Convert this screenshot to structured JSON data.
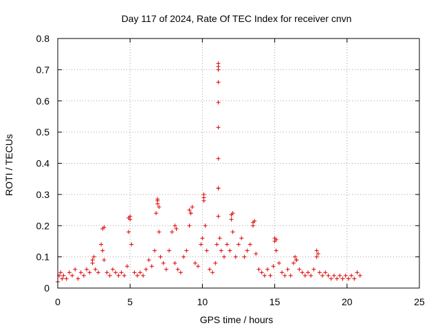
{
  "chart_data": {
    "type": "scatter",
    "title": "Day 117 of 2024, Rate Of TEC Index for receiver cnvn",
    "xlabel": "GPS time / hours",
    "ylabel": "ROTI / TECUs",
    "xlim": [
      0,
      25
    ],
    "ylim": [
      0,
      0.8
    ],
    "xticks": [
      "0",
      "5",
      "10",
      "15",
      "20",
      "25"
    ],
    "yticks": [
      "0",
      "0.1",
      "0.2",
      "0.3",
      "0.4",
      "0.5",
      "0.6",
      "0.7",
      "0.8"
    ],
    "grid": true,
    "marker": "+",
    "marker_color": "#e00000",
    "series": [
      {
        "name": "ROTI",
        "x": [
          0.0,
          0.1,
          0.2,
          0.3,
          0.4,
          0.6,
          0.8,
          1.0,
          1.2,
          1.4,
          1.6,
          1.8,
          2.0,
          2.2,
          2.4,
          2.6,
          2.8,
          3.0,
          3.1,
          3.2,
          3.4,
          3.6,
          3.8,
          4.0,
          4.2,
          4.4,
          4.6,
          4.8,
          4.9,
          5.0,
          5.1,
          5.3,
          5.5,
          5.7,
          5.9,
          6.1,
          6.3,
          6.5,
          6.7,
          6.8,
          6.9,
          7.0,
          7.1,
          7.3,
          7.5,
          7.7,
          7.9,
          8.1,
          8.3,
          8.5,
          8.7,
          8.9,
          9.1,
          9.2,
          9.3,
          9.5,
          9.7,
          9.9,
          10.0,
          10.1,
          10.2,
          10.3,
          10.5,
          10.7,
          10.9,
          11.0,
          11.1,
          11.2,
          11.3,
          11.5,
          11.7,
          11.9,
          12.0,
          12.1,
          12.3,
          12.5,
          12.7,
          12.9,
          13.1,
          13.3,
          13.5,
          13.7,
          13.9,
          14.1,
          14.3,
          14.5,
          14.7,
          14.9,
          15.0,
          15.1,
          15.3,
          15.5,
          15.7,
          15.9,
          16.1,
          16.3,
          16.5,
          16.7,
          16.9,
          17.1,
          17.3,
          17.5,
          17.7,
          17.9,
          18.1,
          18.3,
          18.5,
          18.7,
          18.9,
          19.1,
          19.3,
          19.5,
          19.7,
          19.9,
          20.1,
          20.3,
          20.5,
          20.7,
          20.9,
          11.1,
          11.1,
          11.1,
          11.1,
          11.1,
          11.1,
          11.1,
          11.1,
          11.1,
          6.9,
          6.9,
          7.0,
          9.1,
          9.2,
          10.1,
          10.1,
          3.1,
          3.2,
          4.9,
          5.0,
          12.0,
          12.1,
          13.5,
          13.6,
          8.1,
          8.2,
          15.0,
          15.1,
          17.9,
          18.0,
          2.4,
          2.5,
          16.4,
          16.5
        ],
        "y": [
          0.02,
          0.04,
          0.05,
          0.03,
          0.04,
          0.03,
          0.05,
          0.04,
          0.06,
          0.03,
          0.05,
          0.04,
          0.06,
          0.05,
          0.08,
          0.06,
          0.05,
          0.14,
          0.12,
          0.09,
          0.05,
          0.04,
          0.06,
          0.05,
          0.04,
          0.05,
          0.04,
          0.07,
          0.18,
          0.22,
          0.14,
          0.05,
          0.04,
          0.05,
          0.04,
          0.06,
          0.09,
          0.07,
          0.12,
          0.24,
          0.27,
          0.18,
          0.1,
          0.08,
          0.06,
          0.12,
          0.18,
          0.08,
          0.06,
          0.05,
          0.1,
          0.12,
          0.2,
          0.24,
          0.26,
          0.08,
          0.07,
          0.14,
          0.16,
          0.28,
          0.2,
          0.12,
          0.06,
          0.05,
          0.08,
          0.14,
          0.32,
          0.16,
          0.12,
          0.1,
          0.14,
          0.12,
          0.22,
          0.18,
          0.1,
          0.14,
          0.16,
          0.1,
          0.12,
          0.14,
          0.2,
          0.11,
          0.06,
          0.05,
          0.04,
          0.06,
          0.04,
          0.07,
          0.15,
          0.12,
          0.08,
          0.05,
          0.04,
          0.06,
          0.04,
          0.08,
          0.09,
          0.06,
          0.05,
          0.04,
          0.05,
          0.04,
          0.06,
          0.1,
          0.05,
          0.04,
          0.05,
          0.04,
          0.03,
          0.04,
          0.03,
          0.04,
          0.03,
          0.04,
          0.03,
          0.04,
          0.03,
          0.05,
          0.04,
          0.72,
          0.71,
          0.7,
          0.66,
          0.595,
          0.515,
          0.415,
          0.32,
          0.23,
          0.285,
          0.28,
          0.26,
          0.25,
          0.24,
          0.29,
          0.3,
          0.19,
          0.195,
          0.225,
          0.23,
          0.235,
          0.24,
          0.21,
          0.215,
          0.2,
          0.19,
          0.16,
          0.155,
          0.12,
          0.11,
          0.09,
          0.1,
          0.1,
          0.09
        ]
      }
    ]
  }
}
